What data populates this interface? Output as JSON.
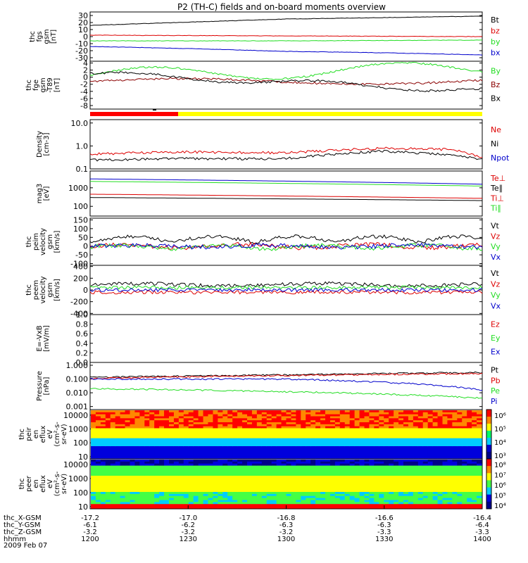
{
  "title": "P2 (TH-C) fields and on-board moments overview",
  "colors": {
    "black": "#000000",
    "red": "#dd0000",
    "green": "#22dd22",
    "blue": "#0000cc",
    "darkred": "#8b0000",
    "yellow": "#ffff00",
    "barred": "#ff0000"
  },
  "panels": [
    {
      "id": "fgs",
      "ylabel": [
        "thc",
        "fgs",
        "gsm",
        "[nT]"
      ],
      "scale": "linear",
      "ticks": [
        "30",
        "20",
        "10",
        "0",
        "-10",
        "-20",
        "-30"
      ],
      "tickvals": [
        30,
        20,
        10,
        0,
        -10,
        -20,
        -30
      ],
      "ylim": [
        -35,
        35
      ],
      "legend": [
        {
          "text": "Bt",
          "color": "#000000"
        },
        {
          "text": "bz",
          "color": "#dd0000"
        },
        {
          "text": "by",
          "color": "#22dd22"
        },
        {
          "text": "bx",
          "color": "#0000cc"
        }
      ]
    },
    {
      "id": "fge",
      "ylabel": [
        "thc",
        "fge",
        "gsm",
        "-T89",
        "[nT]"
      ],
      "scale": "linear",
      "ticks": [
        "4",
        "2",
        "0",
        "-2",
        "-4",
        "-6",
        "-8"
      ],
      "tickvals": [
        4,
        2,
        0,
        -2,
        -4,
        -6,
        -8
      ],
      "ylim": [
        -9,
        4.5
      ],
      "legend": [
        {
          "text": "By",
          "color": "#22dd22"
        },
        {
          "text": "Bz",
          "color": "#8b0000"
        },
        {
          "text": "Bx",
          "color": "#000000"
        }
      ]
    },
    {
      "id": "density",
      "ylabel": [
        "Density",
        "[cm-3]"
      ],
      "scale": "log",
      "ticks": [
        "10.0",
        "1.0",
        "0.1"
      ],
      "tickvals": [
        10,
        1,
        0.1
      ],
      "ylim": [
        0.1,
        14
      ],
      "legend": [
        {
          "text": "Ne",
          "color": "#dd0000"
        },
        {
          "text": "Ni",
          "color": "#000000"
        },
        {
          "text": "Npot",
          "color": "#0000cc"
        }
      ]
    },
    {
      "id": "temp",
      "ylabel": [
        "mag3",
        "[eV]"
      ],
      "scale": "log",
      "ticks": [
        "1000",
        "100"
      ],
      "tickvals": [
        1000,
        100
      ],
      "ylim": [
        30,
        8000
      ],
      "legend": [
        {
          "text": "Te⊥",
          "color": "#dd0000"
        },
        {
          "text": "Te∥",
          "color": "#000000"
        },
        {
          "text": "Ti⊥",
          "color": "#dd0000"
        },
        {
          "text": "Ti∥",
          "color": "#22dd22"
        }
      ]
    },
    {
      "id": "peim",
      "ylabel": [
        "thc",
        "peim",
        "velocity",
        "gsm",
        "[km/s]"
      ],
      "scale": "linear",
      "ticks": [
        "150",
        "100",
        "50",
        "0",
        "-50",
        "-100"
      ],
      "tickvals": [
        150,
        100,
        50,
        0,
        -50,
        -100
      ],
      "ylim": [
        -110,
        160
      ],
      "legend": [
        {
          "text": "Vt",
          "color": "#000000"
        },
        {
          "text": "Vz",
          "color": "#dd0000"
        },
        {
          "text": "Vy",
          "color": "#22dd22"
        },
        {
          "text": "Vx",
          "color": "#0000cc"
        }
      ]
    },
    {
      "id": "peem",
      "ylabel": [
        "thc",
        "peem",
        "velocity",
        "gsm",
        "[km/s]"
      ],
      "scale": "linear",
      "ticks": [
        "400",
        "200",
        "0",
        "-200",
        "-400"
      ],
      "tickvals": [
        400,
        200,
        0,
        -200,
        -400
      ],
      "ylim": [
        -420,
        420
      ],
      "legend": [
        {
          "text": "Vt",
          "color": "#000000"
        },
        {
          "text": "Vz",
          "color": "#dd0000"
        },
        {
          "text": "Vy",
          "color": "#22dd22"
        },
        {
          "text": "Vx",
          "color": "#0000cc"
        }
      ]
    },
    {
      "id": "efield",
      "ylabel": [
        "E=-VxB",
        "[mV/m]"
      ],
      "scale": "linear",
      "ticks": [
        "1.0",
        "0.8",
        "0.6",
        "0.4",
        "0.2",
        "0.0"
      ],
      "tickvals": [
        1,
        0.8,
        0.6,
        0.4,
        0.2,
        0
      ],
      "ylim": [
        0,
        1
      ],
      "legend": [
        {
          "text": "Ez",
          "color": "#dd0000"
        },
        {
          "text": "Ey",
          "color": "#22dd22"
        },
        {
          "text": "Ex",
          "color": "#0000cc"
        }
      ]
    },
    {
      "id": "pressure",
      "ylabel": [
        "Pressure",
        "[nPa]"
      ],
      "scale": "log",
      "ticks": [
        "1.000",
        "0.100",
        "0.010",
        "0.001"
      ],
      "tickvals": [
        1,
        0.1,
        0.01,
        0.001
      ],
      "ylim": [
        0.0006,
        1.6
      ],
      "legend": [
        {
          "text": "Pt",
          "color": "#000000"
        },
        {
          "text": "Pb",
          "color": "#dd0000"
        },
        {
          "text": "Pe",
          "color": "#22dd22"
        },
        {
          "text": "Pi",
          "color": "#0000cc"
        }
      ]
    },
    {
      "id": "peir",
      "ylabel": [
        "thc",
        "peir",
        "en",
        "eflux",
        "eV",
        "(cm²-s-",
        "sr-eV)"
      ],
      "scale": "log",
      "ticks": [
        "10000",
        "1000",
        "100",
        "10"
      ],
      "tickvals": [
        10000,
        1000,
        100,
        10
      ],
      "ylim": [
        7,
        25000
      ],
      "colorbar": [
        "10⁶",
        "10⁵",
        "10⁴",
        "10³"
      ]
    },
    {
      "id": "peer",
      "ylabel": [
        "thc",
        "peer",
        "en",
        "eflux",
        "eV",
        "(cm²-s-",
        "sr-eV)"
      ],
      "scale": "log",
      "ticks": [
        "10000",
        "1000",
        "100",
        "10"
      ],
      "tickvals": [
        10000,
        1000,
        100,
        10
      ],
      "ylim": [
        7,
        25000
      ],
      "colorbar": [
        "10⁸",
        "10⁷",
        "10⁶",
        "10⁵",
        "10⁴"
      ]
    }
  ],
  "xaxis": {
    "rows": [
      {
        "label": "thc_X-GSM",
        "values": [
          "-17.2",
          "-17.0",
          "-16.8",
          "-16.6",
          "-16.4"
        ]
      },
      {
        "label": "thc_Y-GSM",
        "values": [
          "-6.1",
          "-6.2",
          "-6.3",
          "-6.3",
          "-6.4"
        ]
      },
      {
        "label": "thc_Z-GSM",
        "values": [
          "-3.2",
          "-3.2",
          "-3.2",
          "-3.3",
          "-3.3"
        ]
      },
      {
        "label": "hhmm",
        "values": [
          "1200",
          "1230",
          "1300",
          "1330",
          "1400"
        ]
      }
    ],
    "date": "2009 Feb 07"
  },
  "chart_data": {
    "type": "line",
    "title": "P2 (TH-C) fields and on-board moments overview",
    "x_ticks_hhmm": [
      "1200",
      "1230",
      "1300",
      "1330",
      "1400"
    ],
    "series": [
      {
        "name": "Bt",
        "panel": "fgs",
        "x": [
          "1200",
          "1220",
          "1240",
          "1300",
          "1330",
          "1400"
        ],
        "values": [
          16,
          19,
          22,
          25,
          27,
          29
        ]
      },
      {
        "name": "bz",
        "panel": "fgs",
        "x": [
          "1200",
          "1300",
          "1400"
        ],
        "values": [
          2,
          1,
          0
        ]
      },
      {
        "name": "by",
        "panel": "fgs",
        "x": [
          "1200",
          "1300",
          "1400"
        ],
        "values": [
          -6,
          -6,
          -5
        ]
      },
      {
        "name": "bx",
        "panel": "fgs",
        "x": [
          "1200",
          "1230",
          "1300",
          "1330",
          "1400"
        ],
        "values": [
          -14,
          -17,
          -21,
          -23,
          -26
        ]
      },
      {
        "name": "Ni",
        "panel": "density",
        "x": [
          "1200",
          "1230",
          "1300",
          "1330",
          "1350",
          "1400"
        ],
        "values": [
          0.25,
          0.28,
          0.28,
          0.6,
          0.4,
          0.25
        ]
      },
      {
        "name": "Ne",
        "panel": "density",
        "x": [
          "1200",
          "1230",
          "1300",
          "1330",
          "1350",
          "1400"
        ],
        "values": [
          0.45,
          0.55,
          0.5,
          0.8,
          0.7,
          0.3
        ]
      },
      {
        "name": "Pt",
        "panel": "pressure",
        "x": [
          "1200",
          "1300",
          "1400"
        ],
        "values": [
          0.13,
          0.2,
          0.3
        ]
      },
      {
        "name": "Pb",
        "panel": "pressure",
        "x": [
          "1200",
          "1300",
          "1400"
        ],
        "values": [
          0.11,
          0.18,
          0.25
        ]
      },
      {
        "name": "Pe",
        "panel": "pressure",
        "x": [
          "1200",
          "1300",
          "1400"
        ],
        "values": [
          0.02,
          0.012,
          0.004
        ]
      },
      {
        "name": "Pi",
        "panel": "pressure",
        "x": [
          "1200",
          "1300",
          "1400"
        ],
        "values": [
          0.1,
          0.1,
          0.015
        ]
      }
    ]
  }
}
